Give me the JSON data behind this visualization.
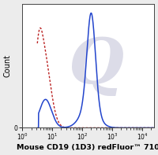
{
  "title": "Mouse CD19 (1D3) redFluor™ 710",
  "ylabel": "Count",
  "xlim": [
    3.2,
    25000
  ],
  "ylim": [
    0,
    1.08
  ],
  "background_color": "#ececec",
  "plot_bg_color": "#ffffff",
  "solid_color": "#2244cc",
  "dashed_color": "#bb2222",
  "watermark_color": "#dcdce8",
  "figsize": [
    2.0,
    1.97
  ],
  "dpi": 100,
  "xlabel_fontsize": 6.8,
  "ylabel_fontsize": 7.0,
  "tick_fontsize": 5.5
}
